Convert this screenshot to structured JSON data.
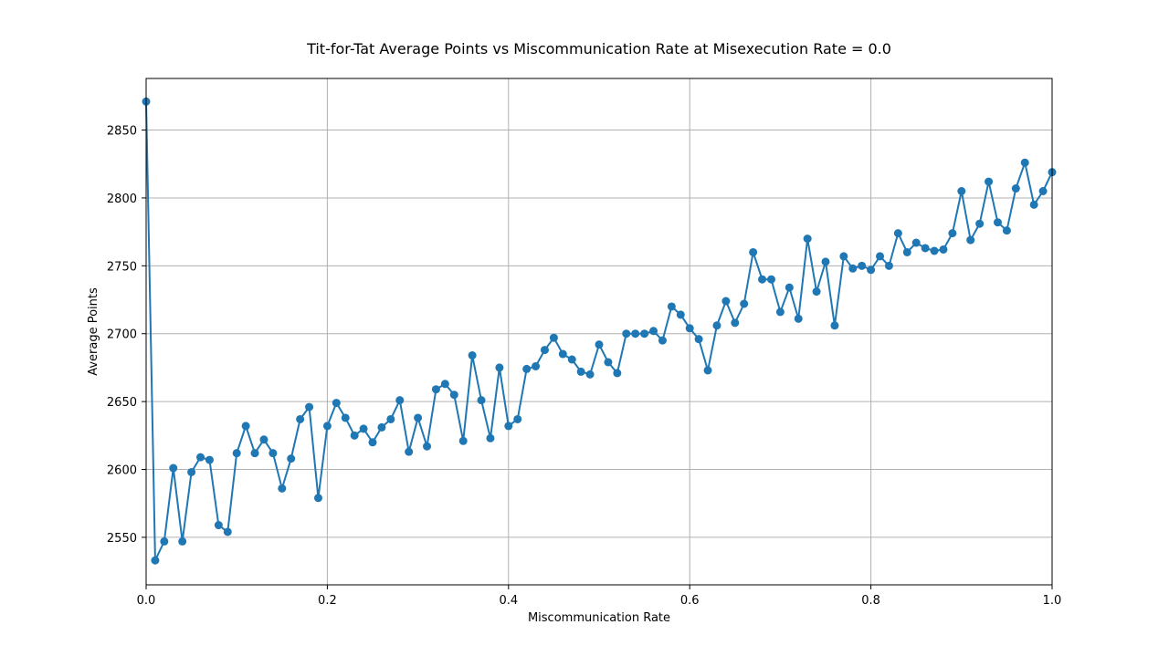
{
  "chart_data": {
    "type": "line",
    "title": "Tit-for-Tat Average Points vs Miscommunication Rate at Misexecution Rate = 0.0",
    "xlabel": "Miscommunication Rate",
    "ylabel": "Average Points",
    "xlim": [
      0.0,
      1.0
    ],
    "ylim": [
      2515,
      2888
    ],
    "x_ticks": [
      0.0,
      0.2,
      0.4,
      0.6,
      0.8,
      1.0
    ],
    "x_tick_labels": [
      "0.0",
      "0.2",
      "0.4",
      "0.6",
      "0.8",
      "1.0"
    ],
    "y_ticks": [
      2550,
      2600,
      2650,
      2700,
      2750,
      2800,
      2850
    ],
    "y_tick_labels": [
      "2550",
      "2600",
      "2650",
      "2700",
      "2750",
      "2800",
      "2850"
    ],
    "grid": true,
    "legend": "none",
    "color": "#1f77b4",
    "marker": "circle",
    "series": [
      {
        "x": [
          0.0,
          0.01,
          0.02,
          0.03,
          0.04,
          0.05,
          0.06,
          0.07,
          0.08,
          0.09,
          0.1,
          0.11,
          0.12,
          0.13,
          0.14,
          0.15,
          0.16,
          0.17,
          0.18,
          0.19,
          0.2,
          0.21,
          0.22,
          0.23,
          0.24,
          0.25,
          0.26,
          0.27,
          0.28,
          0.29,
          0.3,
          0.31,
          0.32,
          0.33,
          0.34,
          0.35,
          0.36,
          0.37,
          0.38,
          0.39,
          0.4,
          0.41,
          0.42,
          0.43,
          0.44,
          0.45,
          0.46,
          0.47,
          0.48,
          0.49,
          0.5,
          0.51,
          0.52,
          0.53,
          0.54,
          0.55,
          0.56,
          0.57,
          0.58,
          0.59,
          0.6,
          0.61,
          0.62,
          0.63,
          0.64,
          0.65,
          0.66,
          0.67,
          0.68,
          0.69,
          0.7,
          0.71,
          0.72,
          0.73,
          0.74,
          0.75,
          0.76,
          0.77,
          0.78,
          0.79,
          0.8,
          0.81,
          0.82,
          0.83,
          0.84,
          0.85,
          0.86,
          0.87,
          0.88,
          0.89,
          0.9,
          0.91,
          0.92,
          0.93,
          0.94,
          0.95,
          0.96,
          0.97,
          0.98,
          0.99,
          1.0
        ],
        "values": [
          2871,
          2533,
          2547,
          2601,
          2547,
          2598,
          2609,
          2607,
          2559,
          2554,
          2612,
          2632,
          2612,
          2622,
          2612,
          2586,
          2608,
          2637,
          2646,
          2579,
          2632,
          2649,
          2638,
          2625,
          2630,
          2620,
          2631,
          2637,
          2651,
          2613,
          2638,
          2617,
          2659,
          2663,
          2655,
          2621,
          2684,
          2651,
          2623,
          2675,
          2632,
          2637,
          2674,
          2676,
          2688,
          2697,
          2685,
          2681,
          2672,
          2670,
          2692,
          2679,
          2671,
          2700,
          2700,
          2700,
          2702,
          2695,
          2720,
          2714,
          2704,
          2696,
          2673,
          2706,
          2724,
          2708,
          2722,
          2760,
          2740,
          2740,
          2716,
          2734,
          2711,
          2770,
          2731,
          2753,
          2706,
          2757,
          2748,
          2750,
          2747,
          2757,
          2750,
          2774,
          2760,
          2767,
          2763,
          2761,
          2762,
          2774,
          2805,
          2769,
          2781,
          2812,
          2782,
          2776,
          2807,
          2826,
          2795,
          2805,
          2819
        ]
      }
    ]
  }
}
